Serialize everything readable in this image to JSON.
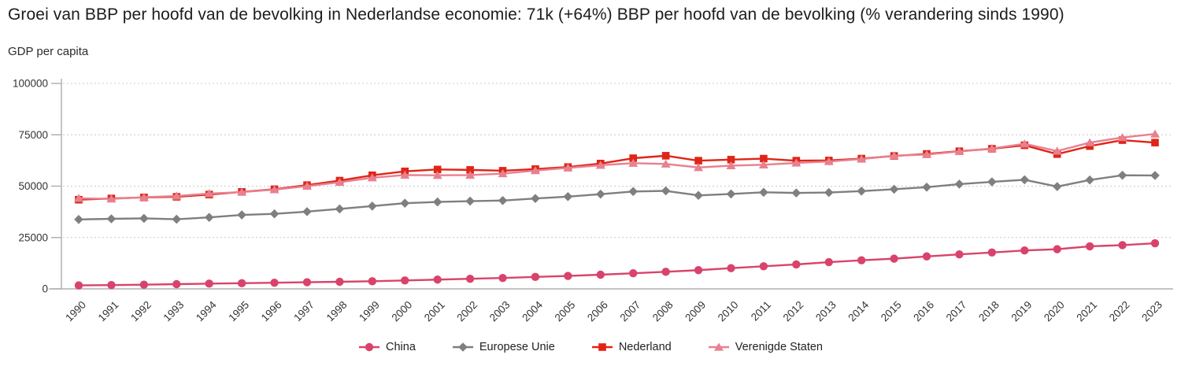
{
  "chart_data": {
    "type": "line",
    "title": "Groei van BBP per hoofd van de bevolking in Nederlandse economie: 71k (+64%) BBP per hoofd van de bevolking (% verandering sinds 1990)",
    "subtitle": "GDP per capita",
    "xlabel": "",
    "ylabel": "GDP per capita",
    "x": [
      1990,
      1991,
      1992,
      1993,
      1994,
      1995,
      1996,
      1997,
      1998,
      1999,
      2000,
      2001,
      2002,
      2003,
      2004,
      2005,
      2006,
      2007,
      2008,
      2009,
      2010,
      2011,
      2012,
      2013,
      2014,
      2015,
      2016,
      2017,
      2018,
      2019,
      2020,
      2021,
      2022,
      2023
    ],
    "ylim": [
      0,
      100000
    ],
    "yticks": [
      0,
      25000,
      50000,
      75000,
      100000
    ],
    "grid": "horizontal-dotted",
    "legend_position": "bottom-center",
    "axis_color": "#b0b0b0",
    "grid_color": "#c9c9c9",
    "tick_text_color": "#333333",
    "series": [
      {
        "name": "China",
        "color": "#d9436b",
        "marker": "circle",
        "values": [
          1700,
          1850,
          2050,
          2300,
          2550,
          2750,
          3000,
          3250,
          3450,
          3700,
          4100,
          4500,
          4900,
          5300,
          5800,
          6300,
          6900,
          7600,
          8300,
          9100,
          10100,
          11000,
          11900,
          13000,
          13900,
          14700,
          15800,
          16800,
          17700,
          18700,
          19300,
          20700,
          21300,
          22200
        ]
      },
      {
        "name": "Europese Unie",
        "color": "#7f7f7f",
        "marker": "diamond",
        "values": [
          33800,
          34100,
          34300,
          33900,
          34800,
          36000,
          36500,
          37600,
          38900,
          40300,
          41700,
          42300,
          42700,
          43000,
          44000,
          44900,
          46100,
          47400,
          47700,
          45500,
          46200,
          47000,
          46700,
          46900,
          47600,
          48500,
          49500,
          51000,
          52100,
          53100,
          49800,
          53000,
          55300,
          55200
        ]
      },
      {
        "name": "Nederland",
        "color": "#e02417",
        "marker": "square",
        "values": [
          43400,
          44000,
          44500,
          44800,
          45900,
          47200,
          48500,
          50500,
          52700,
          55300,
          57200,
          58100,
          57900,
          57500,
          58300,
          59300,
          61000,
          63600,
          64800,
          62400,
          62900,
          63400,
          62400,
          62500,
          63400,
          64700,
          65700,
          67000,
          68200,
          69900,
          65600,
          69500,
          72400,
          71200
        ]
      },
      {
        "name": "Verenigde Staten",
        "color": "#e8808f",
        "marker": "triangle",
        "values": [
          44100,
          43800,
          44600,
          45200,
          46400,
          47100,
          48300,
          50000,
          51900,
          54100,
          55400,
          55300,
          55400,
          56100,
          57600,
          58900,
          60200,
          61200,
          60800,
          59100,
          60000,
          60400,
          61300,
          62000,
          63200,
          64800,
          65400,
          66900,
          68300,
          70600,
          67100,
          71200,
          73700,
          75400
        ]
      }
    ]
  }
}
